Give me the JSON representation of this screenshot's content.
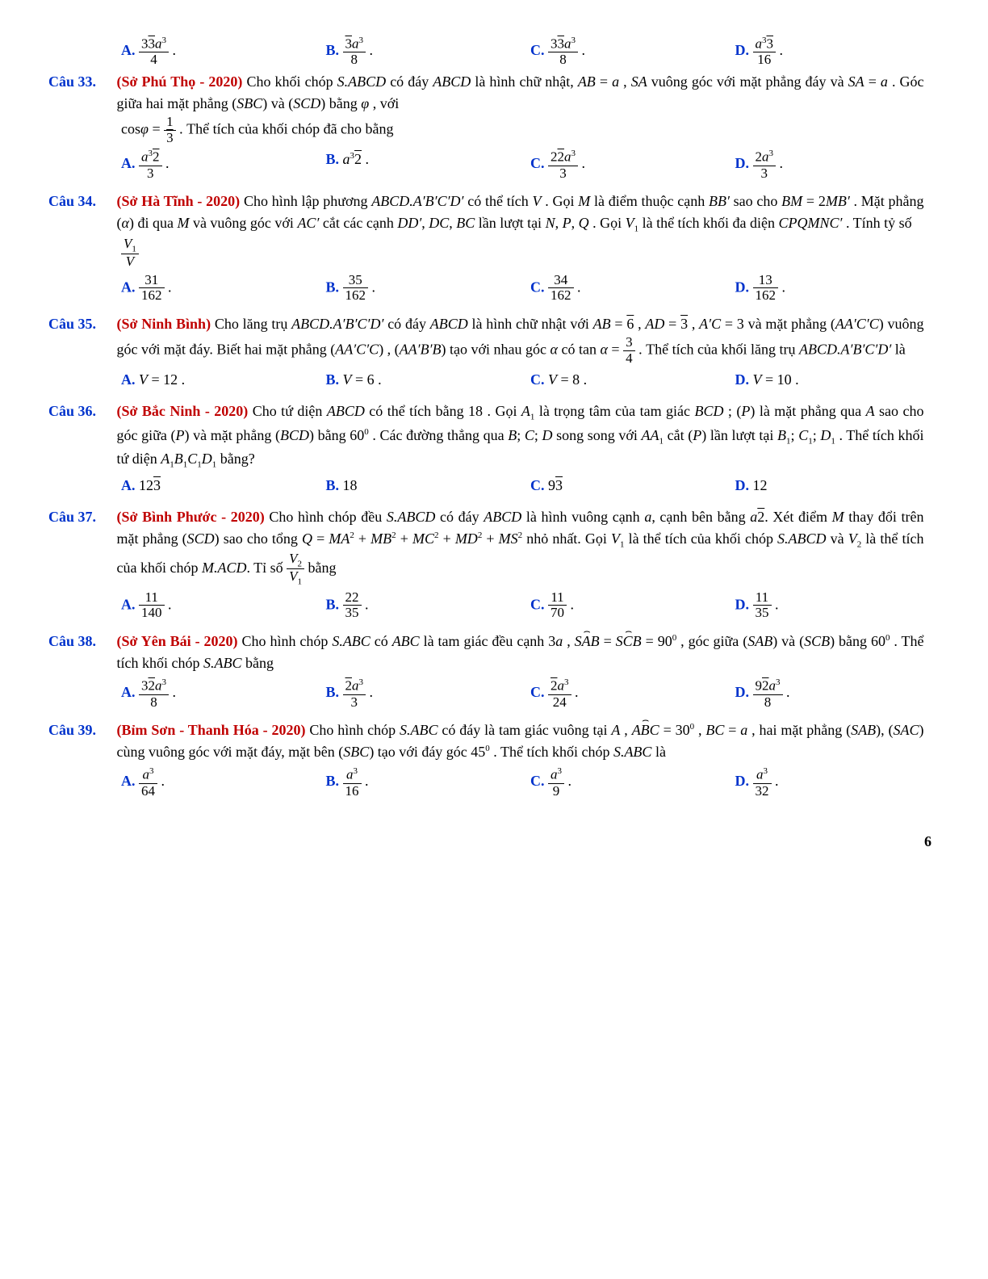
{
  "pageNumber": "6",
  "q_top_options": {
    "A": "(3√3 a³) / 4 .",
    "B": "(√3 a³) / 8 .",
    "C": "(3√3 a³) / 8 .",
    "D": "(a³√3) / 16 ."
  },
  "q33": {
    "num": "Câu 33.",
    "source": "(Sở Phú Thọ - 2020)",
    "text1": "Cho khối chóp S.ABCD có đáy ABCD là hình chữ nhật, AB = a , SA",
    "text2": "vuông góc với mặt phẳng đáy và SA = a . Góc giữa hai mặt phẳng (SBC) và (SCD) bằng φ , với",
    "text3": ". Thể tích của khối chóp đã cho bằng",
    "options": {
      "A": "(a³√2) / 3 .",
      "B": "a³√2 .",
      "C": "(2√2 a³) / 3 .",
      "D": "(2a³) / 3 ."
    }
  },
  "q34": {
    "num": "Câu 34.",
    "source": "(Sở Hà Tĩnh - 2020)",
    "text1": "Cho hình lập phương ABCD.A′B′C′D′ có thể tích V . Gọi M là điểm",
    "text2": "thuộc cạnh BB′ sao cho BM = 2MB′ . Mặt phẳng (α) đi qua M và vuông góc với AC′ cắt các",
    "text3": "cạnh DD′, DC, BC lần lượt tại N, P, Q . Gọi V₁ là thể tích khối đa diện CPQMNC′ . Tính tỷ số",
    "ratio_num": "V₁",
    "ratio_den": "V",
    "options": {
      "A": "31 / 162 .",
      "B": "35 / 162 .",
      "C": "34 / 162 .",
      "D": "13 / 162 ."
    }
  },
  "q35": {
    "num": "Câu 35.",
    "source": "(Sở Ninh Bình)",
    "text1": "Cho lăng trụ ABCD.A′B′C′D′ có đáy ABCD là hình chữ nhật với AB = √6 ,",
    "text2": "AD = √3 , A′C = 3 và mặt phẳng (AA′C′C) vuông góc với mặt đáy. Biết hai mặt phẳng",
    "text3": "(AA′C′C) , (AA′B′B) tạo với nhau góc α có tan α = ",
    "text3b": ". Thể tích của khối lăng trụ",
    "text4": "ABCD.A′B′C′D′ là",
    "options": {
      "A": "V = 12 .",
      "B": "V = 6 .",
      "C": "V = 8 .",
      "D": "V = 10 ."
    }
  },
  "q36": {
    "num": "Câu 36.",
    "source": "(Sở Bắc Ninh - 2020)",
    "text1": "Cho tứ diện ABCD có thể tích bằng 18 . Gọi A₁ là trọng tâm của tam giác",
    "text2": "BCD ; (P) là mặt phẳng qua A sao cho góc giữa (P) và mặt phẳng (BCD) bằng 60⁰ . Các",
    "text3": "đường thẳng qua B; C; D song song với AA₁ cắt (P) lần lượt tại B₁; C₁; D₁ . Thể tích khối tứ diện",
    "text4": "A₁B₁C₁D₁ bằng?",
    "options": {
      "A": "12√3",
      "B": "18",
      "C": "9√3",
      "D": "12"
    }
  },
  "q37": {
    "num": "Câu 37.",
    "source": "(Sở Bình Phước - 2020)",
    "text1": "Cho hình chóp đều S.ABCD có đáy ABCD là hình vuông cạnh a,",
    "text2": "cạnh bên bằng a√2. Xét điểm M thay đổi trên mặt phẳng (SCD) sao cho tổng",
    "text3": "Q = MA² + MB² + MC² + MD² + MS² nhỏ nhất. Gọi V₁ là thể tích của khối chóp S.ABCD và",
    "text4": "V₂ là thể tích của khối chóp M.ACD. Tỉ số ",
    "text4b": " bằng",
    "options": {
      "A": "11 / 140 .",
      "B": "22 / 35 .",
      "C": "11 / 70 .",
      "D": "11 / 35 ."
    }
  },
  "q38": {
    "num": "Câu 38.",
    "source": "(Sở Yên Bái - 2020)",
    "text1": "Cho hình chóp S.ABC có ABC là tam giác đều cạnh 3a ,",
    "text2": "SAB = SCB = 90⁰ , góc giữa (SAB) và (SCB) bằng 60⁰ . Thể tích khối chóp S.ABC bằng",
    "options": {
      "A": "(3√2 a³) / 8 .",
      "B": "(√2 a³) / 3 .",
      "C": "(√2 a³) / 24 .",
      "D": "(9√2 a³) / 8 ."
    }
  },
  "q39": {
    "num": "Câu 39.",
    "source": "(Bỉm Sơn - Thanh Hóa - 2020)",
    "text1": "Cho hình chóp S.ABC có đáy là tam giác vuông tại A ,",
    "text2": "ABC = 30⁰ , BC = a , hai mặt phẳng (SAB), (SAC) cùng vuông góc với mặt đáy, mặt bên (SBC)",
    "text3": "tạo với đáy góc 45⁰ . Thể tích khối chóp S.ABC là",
    "options": {
      "A": "a³ / 64 .",
      "B": "a³ / 16 .",
      "C": "a³ / 9 .",
      "D": "a³ / 32 ."
    }
  }
}
